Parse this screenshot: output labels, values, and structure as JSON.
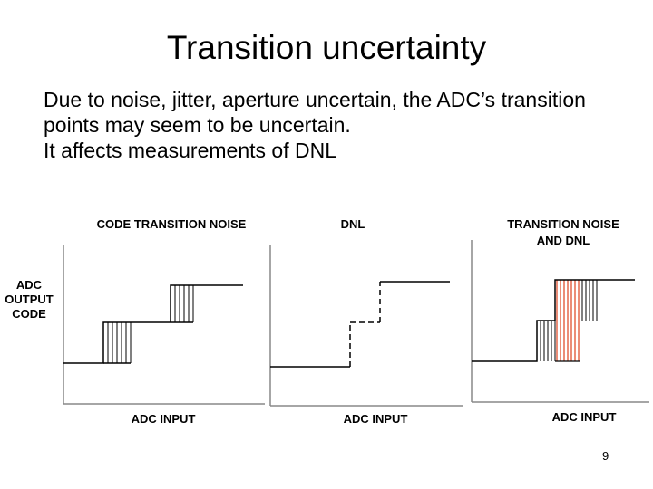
{
  "slide": {
    "title": "Transition uncertainty",
    "bullets": [
      "Due to noise, jitter, aperture uncertain, the ADC’s transition",
      "points may seem to be uncertain.",
      "It affects measurements of DNL"
    ],
    "page_number": "9"
  },
  "diagram": {
    "y_axis_label": [
      "ADC",
      "OUTPUT",
      "CODE"
    ],
    "panels": [
      {
        "title_lines": [
          "CODE TRANSITION NOISE"
        ],
        "x_label": "ADC INPUT"
      },
      {
        "title_lines": [
          "DNL"
        ],
        "x_label": "ADC INPUT"
      },
      {
        "title_lines": [
          "TRANSITION NOISE",
          "AND DNL"
        ],
        "x_label": "ADC INPUT"
      }
    ],
    "colors": {
      "line": "#000000",
      "axis": "#888888",
      "highlight": "#e05030"
    }
  }
}
